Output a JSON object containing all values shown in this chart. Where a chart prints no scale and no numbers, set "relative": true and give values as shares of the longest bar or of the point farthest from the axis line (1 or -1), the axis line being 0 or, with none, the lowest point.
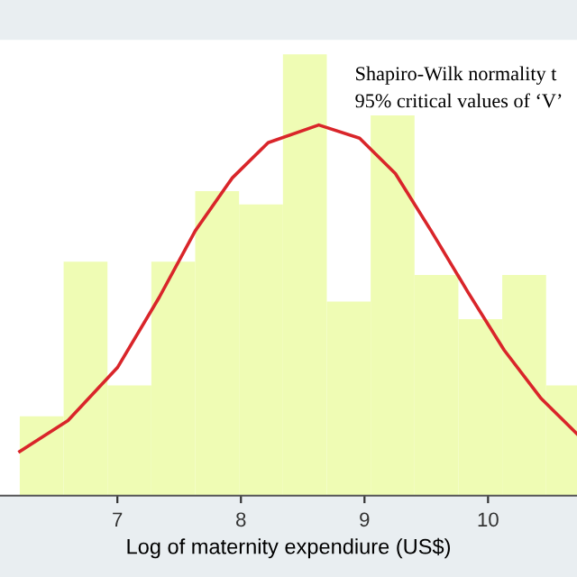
{
  "chart_data": {
    "type": "histogram",
    "relative": true,
    "xlabel": "Log of maternity expendiure (US$)",
    "xlim": [
      6.05,
      10.72
    ],
    "xticks": [
      7,
      8,
      9,
      10
    ],
    "bins": [
      6.21,
      6.565,
      6.92,
      7.275,
      7.63,
      7.985,
      8.34,
      8.695,
      9.05,
      9.405,
      9.76,
      10.115,
      10.47,
      10.825
    ],
    "values": [
      0.18,
      0.53,
      0.25,
      0.53,
      0.69,
      0.66,
      1,
      0.44,
      0.87,
      0.5,
      0.4,
      0.5,
      0.25
    ],
    "color": "#effcb4",
    "series": [
      {
        "type": "line",
        "color": "#d9252a",
        "x": [
          6.21,
          6.6,
          7.0,
          7.34,
          7.63,
          7.93,
          8.22,
          8.63,
          8.96,
          9.25,
          9.54,
          9.84,
          10.13,
          10.43,
          10.72
        ],
        "values": [
          0.1,
          0.17,
          0.29,
          0.45,
          0.6,
          0.72,
          0.8,
          0.84,
          0.81,
          0.73,
          0.6,
          0.46,
          0.33,
          0.22,
          0.14
        ]
      }
    ],
    "annotations": [
      "Shapiro-Wilk normality t",
      "95% critical values of ‘V’"
    ]
  }
}
